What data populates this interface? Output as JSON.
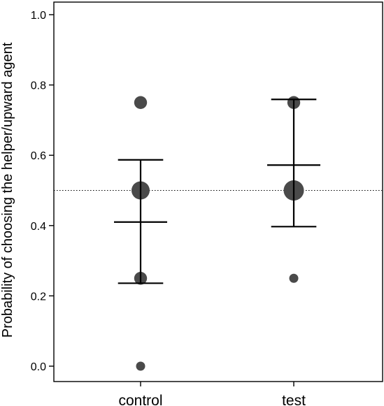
{
  "chart_data": {
    "type": "scatter",
    "title": "",
    "xlabel": "",
    "ylabel": "Probability of choosing the helper/upward agent",
    "categories": [
      "control",
      "test"
    ],
    "ylim": [
      0.0,
      1.0
    ],
    "yticks": [
      "0.0",
      "0.2",
      "0.4",
      "0.6",
      "0.8",
      "1.0"
    ],
    "reference_line": {
      "y": 0.5,
      "style": "dotted"
    },
    "points": [
      {
        "category": "control",
        "y": 0.75,
        "weight": 2
      },
      {
        "category": "control",
        "y": 0.5,
        "weight": 4
      },
      {
        "category": "control",
        "y": 0.25,
        "weight": 2
      },
      {
        "category": "control",
        "y": 0.0,
        "weight": 1
      },
      {
        "category": "test",
        "y": 0.75,
        "weight": 2
      },
      {
        "category": "test",
        "y": 0.5,
        "weight": 5
      },
      {
        "category": "test",
        "y": 0.25,
        "weight": 1
      }
    ],
    "summary": [
      {
        "category": "control",
        "mean": 0.41,
        "lower": 0.236,
        "upper": 0.587
      },
      {
        "category": "test",
        "mean": 0.572,
        "lower": 0.397,
        "upper": 0.759
      }
    ],
    "point_color": "#4a4a4a",
    "line_color": "#000000"
  }
}
